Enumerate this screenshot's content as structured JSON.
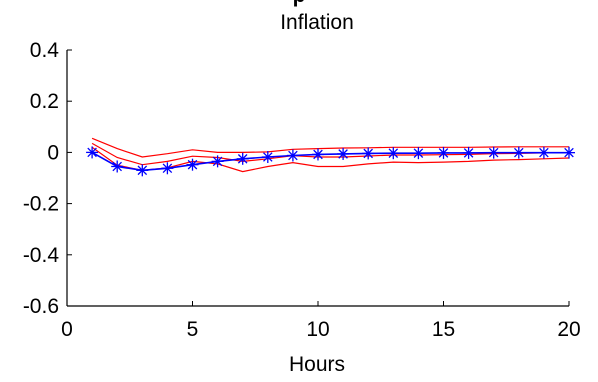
{
  "clipped_title_fragment": "p",
  "chart_data": {
    "type": "line",
    "title": "Inflation",
    "xlabel": "Hours",
    "ylabel": "",
    "xlim": [
      0,
      20
    ],
    "ylim": [
      -0.6,
      0.4
    ],
    "x_ticks": [
      0,
      5,
      10,
      15,
      20
    ],
    "y_ticks": [
      0.4,
      0.2,
      0,
      -0.2,
      -0.4,
      -0.6
    ],
    "x_tick_labels": [
      "0",
      "5",
      "10",
      "15",
      "20"
    ],
    "y_tick_labels": [
      "0.4",
      "0.2",
      "0",
      "-0.2",
      "-0.4",
      "-0.6"
    ],
    "grid": false,
    "x": [
      1,
      2,
      3,
      4,
      5,
      6,
      7,
      8,
      9,
      10,
      11,
      12,
      13,
      14,
      15,
      16,
      17,
      18,
      19,
      20
    ],
    "series": [
      {
        "role": "estimate",
        "color": "#0000ff",
        "marker": "asterisk",
        "values": [
          0.0,
          -0.055,
          -0.07,
          -0.062,
          -0.048,
          -0.035,
          -0.025,
          -0.018,
          -0.012,
          -0.008,
          -0.006,
          -0.004,
          -0.003,
          -0.003,
          -0.002,
          -0.002,
          -0.001,
          -0.001,
          -0.001,
          -0.001
        ]
      },
      {
        "role": "upper-band",
        "color": "#ff0000",
        "values": [
          0.055,
          0.015,
          -0.018,
          -0.005,
          0.01,
          0.0,
          0.0,
          0.002,
          0.012,
          0.015,
          0.017,
          0.018,
          0.02,
          0.02,
          0.02,
          0.02,
          0.021,
          0.022,
          0.022,
          0.022
        ]
      },
      {
        "role": "lower-band",
        "color": "#ff0000",
        "values": [
          0.02,
          -0.05,
          -0.07,
          -0.06,
          -0.035,
          -0.045,
          -0.075,
          -0.055,
          -0.04,
          -0.055,
          -0.055,
          -0.045,
          -0.038,
          -0.04,
          -0.038,
          -0.035,
          -0.03,
          -0.028,
          -0.025,
          -0.022
        ]
      },
      {
        "role": "center-band",
        "color": "#ff0000",
        "values": [
          0.035,
          -0.02,
          -0.048,
          -0.035,
          -0.015,
          -0.02,
          -0.035,
          -0.025,
          -0.013,
          -0.018,
          -0.018,
          -0.014,
          -0.01,
          -0.01,
          -0.009,
          -0.008,
          -0.005,
          -0.004,
          -0.002,
          -0.002
        ]
      }
    ]
  }
}
